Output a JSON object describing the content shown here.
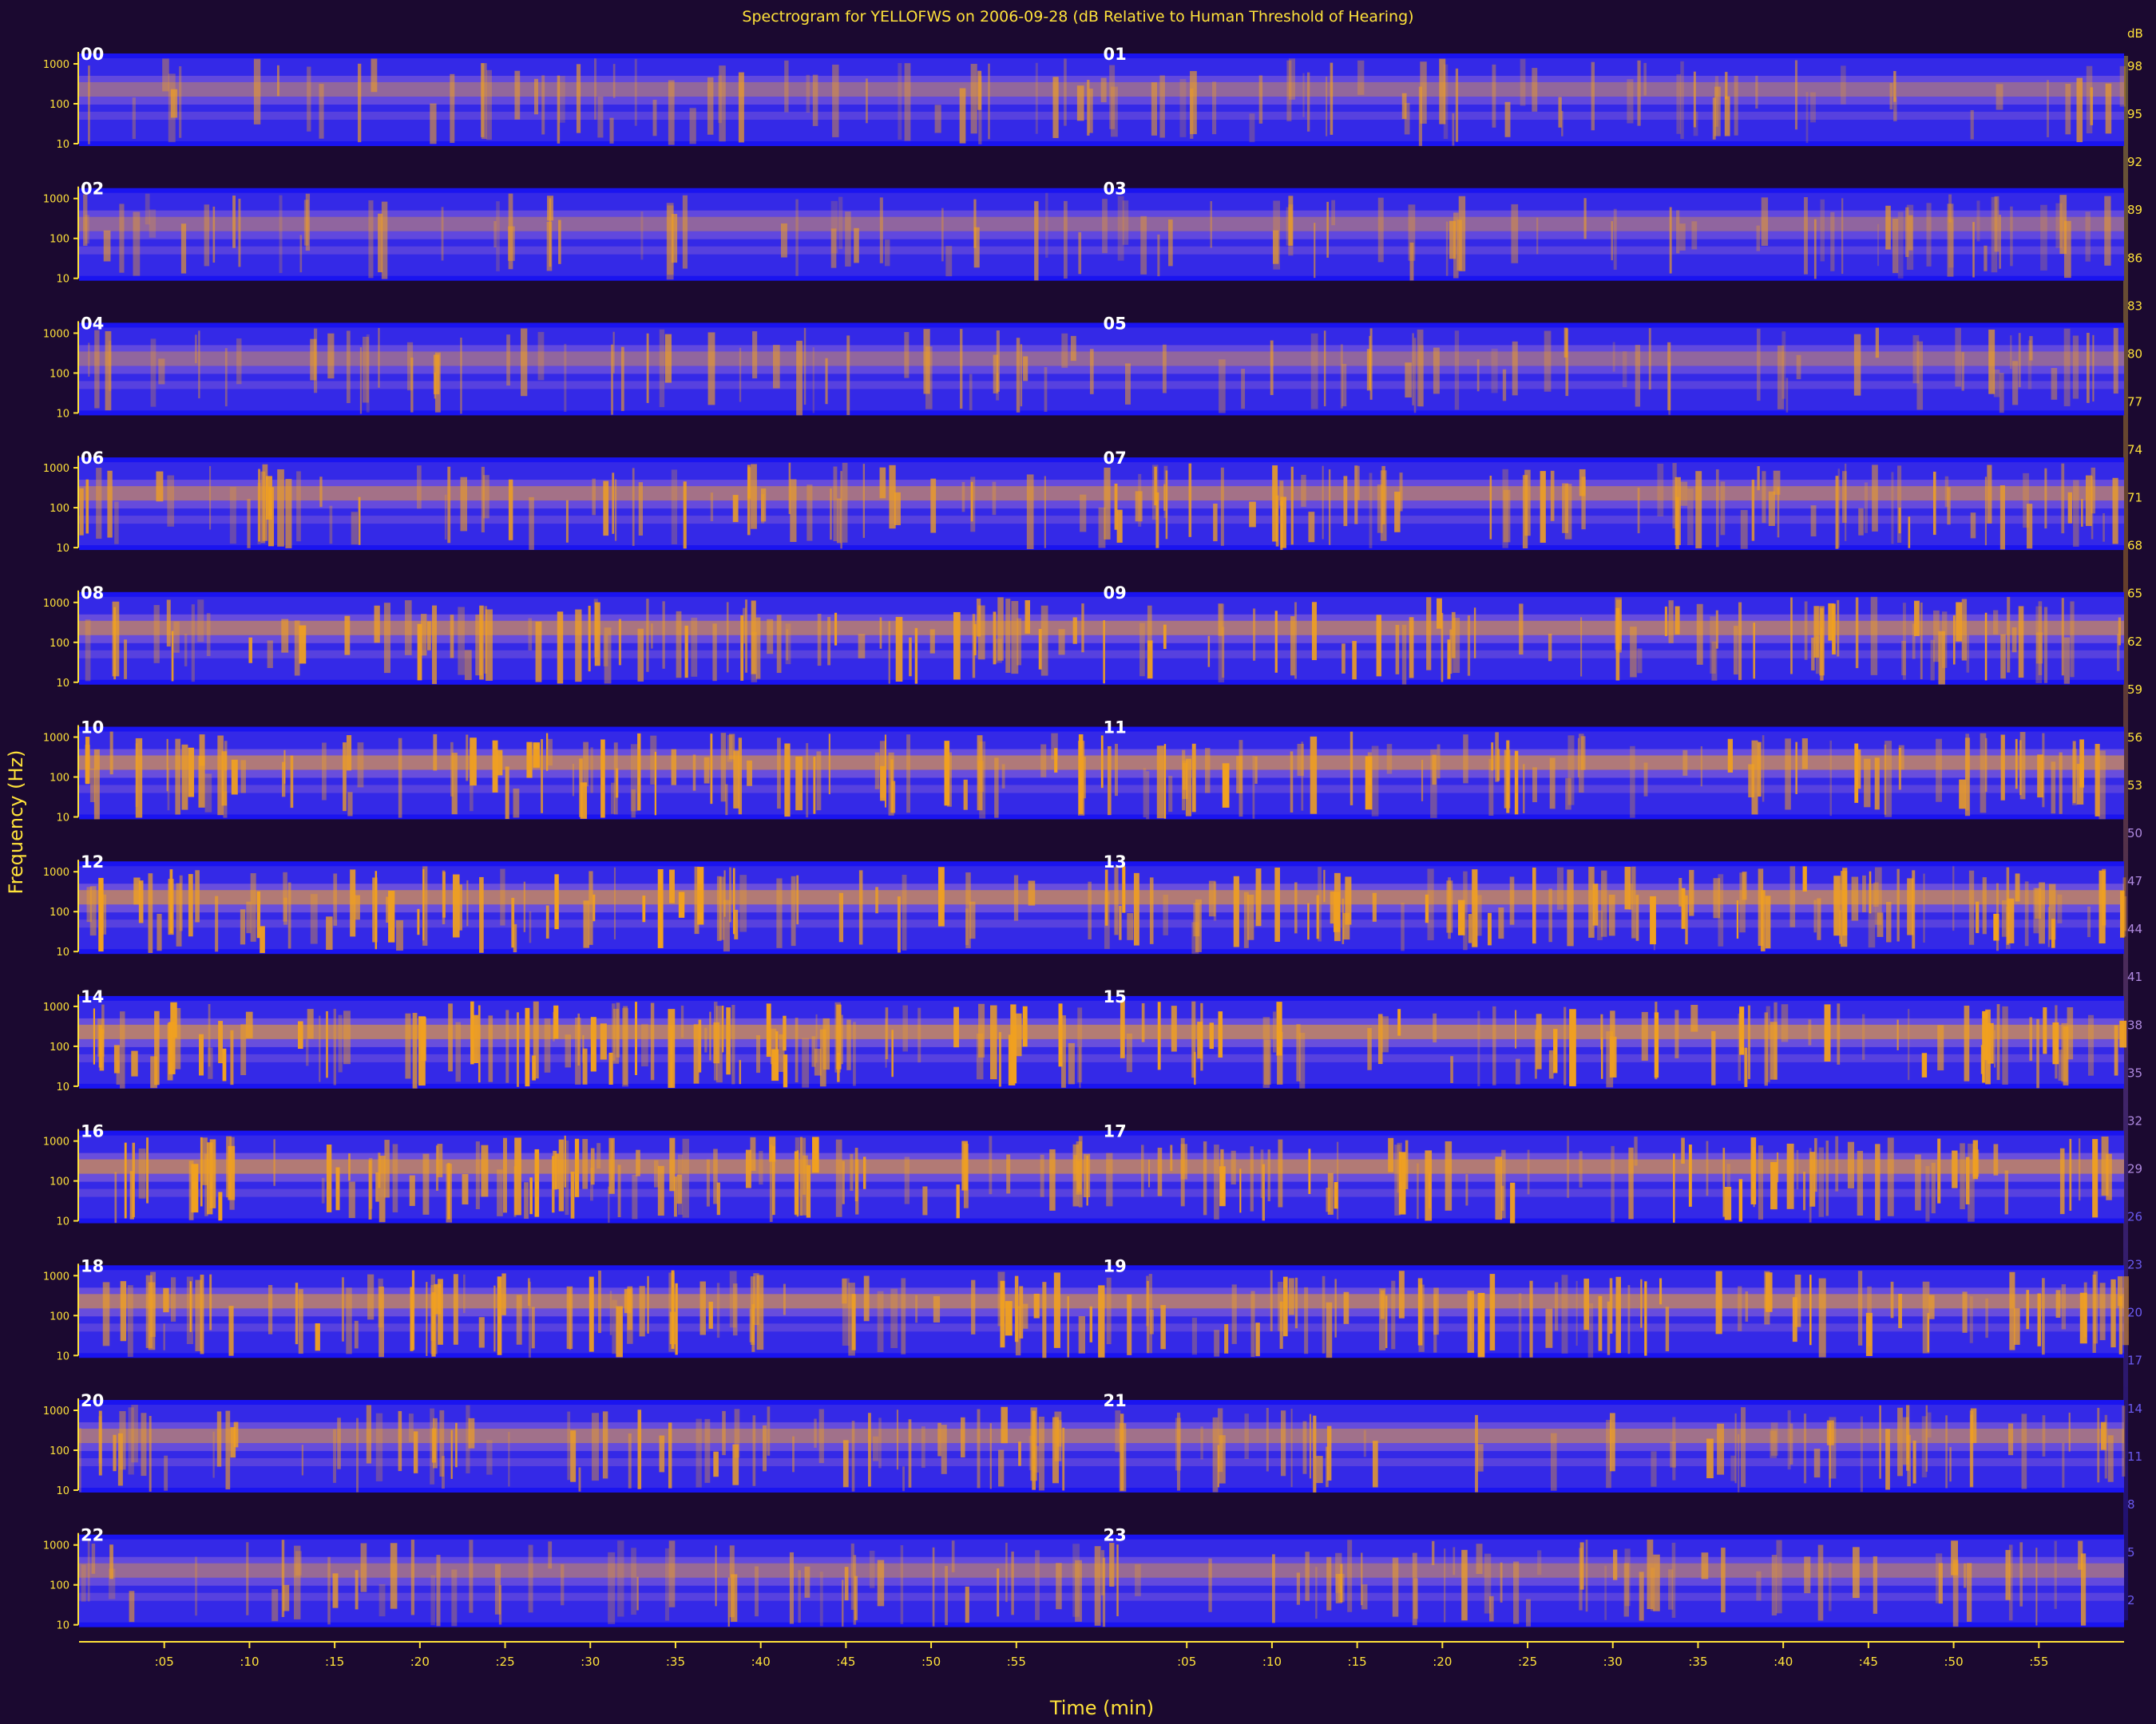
{
  "chart_data": {
    "type": "heatmap",
    "title": "Spectrogram for YELLOFWS on 2006-09-28 (dB Relative to Human Threshold of Hearing)",
    "xlabel": "Time (min)",
    "ylabel": "Frequency (Hz)",
    "x_tick_labels_each_half": [
      ":05",
      ":10",
      ":15",
      ":20",
      ":25",
      ":30",
      ":35",
      ":40",
      ":45",
      ":50",
      ":55"
    ],
    "y_tick_labels": [
      "1000",
      "100",
      "10"
    ],
    "hour_labels": [
      "00",
      "01",
      "02",
      "03",
      "04",
      "05",
      "06",
      "07",
      "08",
      "09",
      "10",
      "11",
      "12",
      "13",
      "14",
      "15",
      "16",
      "17",
      "18",
      "19",
      "20",
      "21",
      "22",
      "23"
    ],
    "colorbar_ticks_db": [
      98,
      95,
      92,
      89,
      86,
      83,
      80,
      77,
      74,
      71,
      68,
      65,
      62,
      59,
      56,
      53,
      50,
      47,
      44,
      41,
      38,
      35,
      32,
      29,
      26,
      23,
      20,
      17,
      14,
      11,
      8,
      5,
      2
    ],
    "colorbar_unit": "dB",
    "hour_rows_intensity": [
      {
        "hours": "00-01",
        "level": 0.35
      },
      {
        "hours": "02-03",
        "level": 0.33
      },
      {
        "hours": "04-05",
        "level": 0.34
      },
      {
        "hours": "06-07",
        "level": 0.55
      },
      {
        "hours": "08-09",
        "level": 0.62
      },
      {
        "hours": "10-11",
        "level": 0.68
      },
      {
        "hours": "12-13",
        "level": 0.72
      },
      {
        "hours": "14-15",
        "level": 0.74
      },
      {
        "hours": "16-17",
        "level": 0.72
      },
      {
        "hours": "18-19",
        "level": 0.66
      },
      {
        "hours": "20-21",
        "level": 0.52
      },
      {
        "hours": "22-23",
        "level": 0.42
      }
    ],
    "colors": {
      "background": "#1b0930",
      "plot_bg": "#0a0a6e",
      "low": "#1a14f0",
      "mid": "#7a5ad8",
      "high": "#f0a020",
      "text": "#ffe23a",
      "hour_label": "#ffffff"
    }
  }
}
